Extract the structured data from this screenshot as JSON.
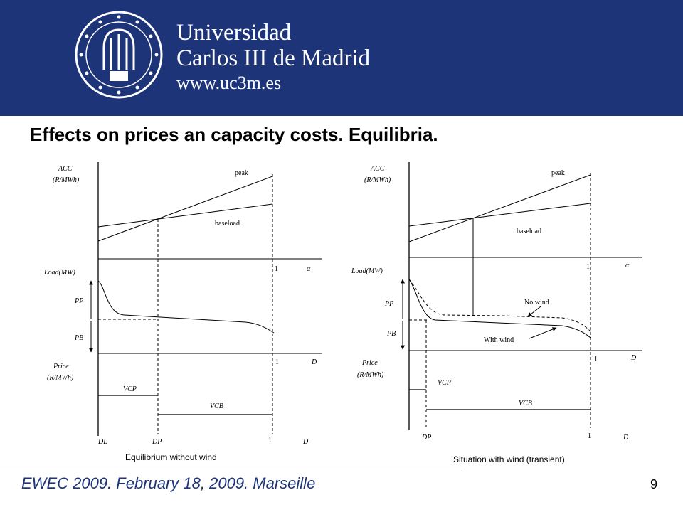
{
  "header": {
    "university_line1": "Universidad",
    "university_line2": "Carlos III de Madrid",
    "website": "www.uc3m.es",
    "seal_ring_text": "UNIVERSIDAD CARLOS III DE MADRID",
    "seal_motto": "homo homini sacra res",
    "background_color": "#1e3479"
  },
  "slide": {
    "title": "Effects on prices an capacity costs. Equilibria."
  },
  "left_panel": {
    "acc_label": "ACC",
    "acc_unit": "(R/MWh)",
    "peak_label": "peak",
    "baseload_label": "baseload",
    "one_top": "1",
    "alpha_label": "α",
    "load_label": "Load(MW)",
    "pp_label": "PP",
    "pb_label": "PB",
    "one_mid": "1",
    "d_mid": "D",
    "price_label": "Price",
    "price_unit": "(R/MWh)",
    "vcp_label": "VCP",
    "vcb_label": "VCB",
    "dl_label": "DL",
    "dp_label": "DP",
    "one_bottom": "1",
    "d_bottom": "D",
    "caption": "Equilibrium without wind"
  },
  "right_panel": {
    "acc_label": "ACC",
    "acc_unit": "(R/MWh)",
    "peak_label": "peak",
    "baseload_label": "baseload",
    "one_top": "1",
    "alpha_label": "α",
    "load_label": "Load(MW)",
    "pp_label": "PP",
    "pb_label": "PB",
    "no_wind_label": "No wind",
    "with_wind_label": "With wind",
    "one_mid": "1",
    "d_mid": "D",
    "price_label": "Price",
    "price_unit": "(R/MWh)",
    "vcp_label": "VCP",
    "vcb_label": "VCB",
    "dp_label": "DP",
    "one_bottom": "1",
    "d_bottom": "D",
    "caption": "Situation with wind (transient)"
  },
  "footer": {
    "event": "EWEC 2009. February 18, 2009. Marseille",
    "page_number": "9",
    "accent_color": "#1e3479"
  }
}
